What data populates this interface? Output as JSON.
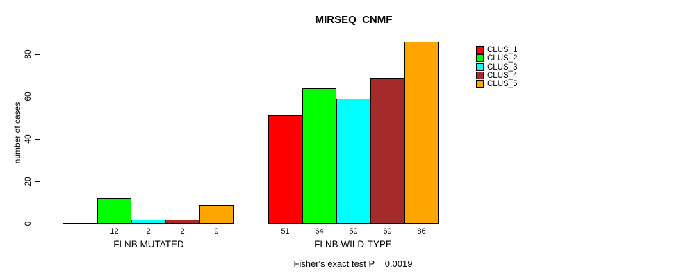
{
  "chart_data": {
    "type": "bar",
    "title": "MIRSEQ_CNMF",
    "ylabel": "number of cases",
    "ylim": [
      0,
      80
    ],
    "yticks": [
      0,
      20,
      40,
      60,
      80
    ],
    "categories": [
      "FLNB MUTATED",
      "FLNB WILD-TYPE"
    ],
    "series": [
      {
        "name": "CLUS_1",
        "color": "#ff0000",
        "values": [
          0,
          51
        ]
      },
      {
        "name": "CLUS_2",
        "color": "#00ff00",
        "values": [
          12,
          64
        ]
      },
      {
        "name": "CLUS_3",
        "color": "#00ffff",
        "values": [
          2,
          59
        ]
      },
      {
        "name": "CLUS_4",
        "color": "#a52a2a",
        "values": [
          2,
          69
        ]
      },
      {
        "name": "CLUS_5",
        "color": "#ffa500",
        "values": [
          9,
          86
        ]
      }
    ],
    "bar_value_labels": [
      [
        "",
        "12",
        "2",
        "2",
        "9"
      ],
      [
        "51",
        "64",
        "59",
        "69",
        "86"
      ]
    ],
    "legend": {
      "position": "right",
      "entries": [
        "CLUS_1",
        "CLUS_2",
        "CLUS_3",
        "CLUS_4",
        "CLUS_5"
      ]
    },
    "annotation": "Fisher's exact test P = 0.0019",
    "grid": false,
    "bar_border_color": "#000000",
    "axis_color": "#000000"
  }
}
